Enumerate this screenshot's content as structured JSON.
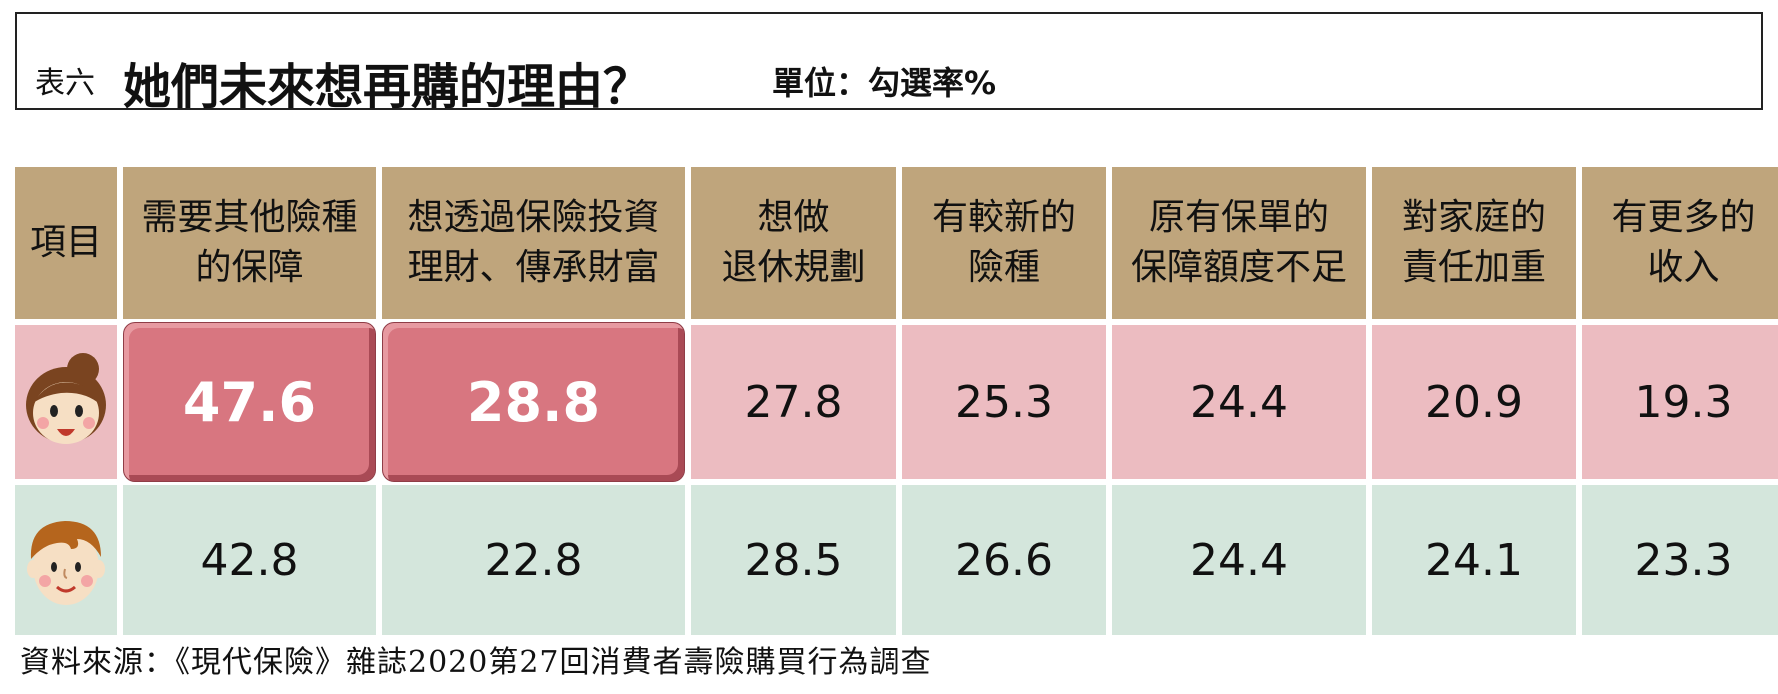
{
  "title": {
    "label": "表六",
    "main": "她們未來想再購的理由？",
    "unit": "單位：勾選率%"
  },
  "chart_data": {
    "type": "table",
    "row_header_label": "項目",
    "columns": [
      "需要其他險種\n的保障",
      "想透過保險投資\n理財、傳承財富",
      "想做\n退休規劃",
      "有較新的\n險種",
      "原有保單的\n保障額度不足",
      "對家庭的\n責任加重",
      "有更多的\n收入"
    ],
    "rows": [
      {
        "icon": "female-face-icon",
        "color": "#ecbcc1",
        "values": [
          "47.6",
          "28.8",
          "27.8",
          "25.3",
          "24.4",
          "20.9",
          "19.3"
        ],
        "highlighted": [
          0,
          1
        ]
      },
      {
        "icon": "male-face-icon",
        "color": "#d4e6dc",
        "values": [
          "42.8",
          "22.8",
          "28.5",
          "26.6",
          "24.4",
          "24.1",
          "23.3"
        ],
        "highlighted": []
      }
    ]
  },
  "source": "資料來源：《現代保險》雜誌2020第27回消費者壽險購買行為調查",
  "colors": {
    "header_bg": "#bfa57c",
    "female_row_bg": "#ecbcc1",
    "male_row_bg": "#d4e6dc",
    "highlight_bg": "#d87680"
  }
}
